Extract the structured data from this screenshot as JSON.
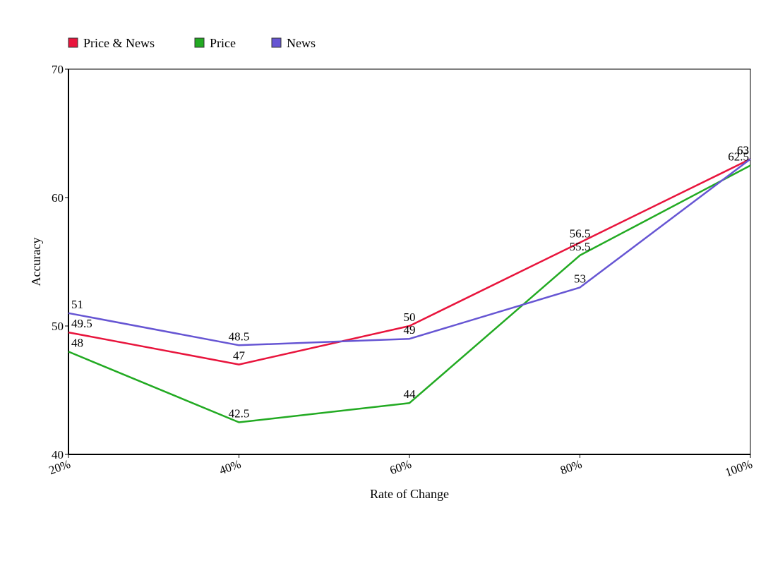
{
  "chart_data": {
    "type": "line",
    "categories": [
      "20%",
      "40%",
      "60%",
      "80%",
      "100%"
    ],
    "xlabel": "Rate of Change",
    "ylabel": "Accuracy",
    "ylim": [
      40,
      70
    ],
    "yticks": [
      40,
      50,
      60,
      70
    ],
    "grid": false,
    "legend_position": "top-left",
    "series": [
      {
        "name": "Price & News",
        "color": "#e8143c",
        "values": [
          49.5,
          47,
          50,
          56.5,
          63
        ]
      },
      {
        "name": "Price",
        "color": "#22aa22",
        "values": [
          48,
          42.5,
          44,
          55.5,
          62.5
        ]
      },
      {
        "name": "News",
        "color": "#6655d3",
        "values": [
          51,
          48.5,
          49,
          53,
          63
        ]
      }
    ]
  }
}
